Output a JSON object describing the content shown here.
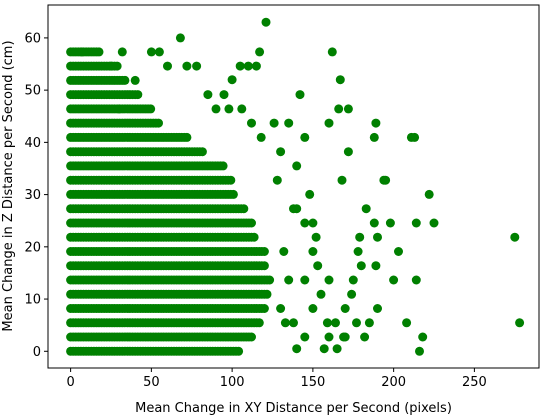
{
  "chart_data": {
    "type": "scatter",
    "title": "",
    "xlabel": "Mean Change in XY Distance per Second (pixels)",
    "ylabel": "Mean Change in Z Distance per Second (cm)",
    "xlim": [
      -14,
      290
    ],
    "ylim": [
      -3.2,
      66.3
    ],
    "xticks": [
      0,
      50,
      100,
      150,
      200,
      250
    ],
    "yticks": [
      0,
      10,
      20,
      30,
      40,
      50,
      60
    ],
    "grid": false,
    "legend": "none",
    "marker_color": "#008000",
    "z_levels": [
      0,
      2.73,
      5.46,
      8.19,
      10.92,
      13.65,
      16.38,
      19.11,
      21.84,
      24.57,
      27.3,
      30.03,
      32.76,
      35.49,
      38.22,
      40.95,
      43.68,
      46.41,
      49.14,
      51.87,
      54.6,
      57.33
    ],
    "dense_bands": [
      {
        "z": 0,
        "x_max": 105
      },
      {
        "z": 2.73,
        "x_max": 112
      },
      {
        "z": 5.46,
        "x_max": 118
      },
      {
        "z": 8.19,
        "x_max": 120
      },
      {
        "z": 10.92,
        "x_max": 122
      },
      {
        "z": 13.65,
        "x_max": 124
      },
      {
        "z": 16.38,
        "x_max": 120
      },
      {
        "z": 19.11,
        "x_max": 120
      },
      {
        "z": 21.84,
        "x_max": 115
      },
      {
        "z": 24.57,
        "x_max": 112
      },
      {
        "z": 27.3,
        "x_max": 108
      },
      {
        "z": 30.03,
        "x_max": 102
      },
      {
        "z": 32.76,
        "x_max": 100
      },
      {
        "z": 35.49,
        "x_max": 95
      },
      {
        "z": 38.22,
        "x_max": 82
      },
      {
        "z": 40.95,
        "x_max": 72
      },
      {
        "z": 43.68,
        "x_max": 55
      },
      {
        "z": 46.41,
        "x_max": 50
      },
      {
        "z": 49.14,
        "x_max": 42
      },
      {
        "z": 51.87,
        "x_max": 35
      },
      {
        "z": 54.6,
        "x_max": 30
      },
      {
        "z": 57.33,
        "x_max": 18
      }
    ],
    "outlier_points": [
      [
        278,
        5.46
      ],
      [
        275,
        21.84
      ],
      [
        225,
        24.57
      ],
      [
        222,
        30.03
      ],
      [
        218,
        2.73
      ],
      [
        216,
        0
      ],
      [
        214,
        13.65
      ],
      [
        214,
        24.57
      ],
      [
        213,
        40.95
      ],
      [
        211,
        40.95
      ],
      [
        208,
        5.46
      ],
      [
        203,
        19.11
      ],
      [
        200,
        13.65
      ],
      [
        198,
        24.57
      ],
      [
        195,
        32.76
      ],
      [
        194,
        32.76
      ],
      [
        190,
        8.19
      ],
      [
        190,
        21.84
      ],
      [
        189,
        43.68
      ],
      [
        189,
        16.38
      ],
      [
        188,
        24.57
      ],
      [
        188,
        40.95
      ],
      [
        185,
        5.46
      ],
      [
        183,
        27.3
      ],
      [
        182,
        2.73
      ],
      [
        180,
        16.38
      ],
      [
        179,
        21.84
      ],
      [
        178,
        19.11
      ],
      [
        177,
        5.46
      ],
      [
        174,
        10.92
      ],
      [
        172,
        38.22
      ],
      [
        172,
        46.41
      ],
      [
        170,
        8.19
      ],
      [
        169,
        2.73
      ],
      [
        168,
        32.76
      ],
      [
        167,
        52.0
      ],
      [
        166,
        46.41
      ],
      [
        164,
        5.46
      ],
      [
        162,
        57.33
      ],
      [
        160,
        43.68
      ],
      [
        159,
        5.46
      ],
      [
        157,
        0.5
      ],
      [
        155,
        10.92
      ],
      [
        153,
        16.38
      ],
      [
        152,
        21.84
      ],
      [
        150,
        24.57
      ],
      [
        148,
        30.03
      ],
      [
        145,
        40.95
      ],
      [
        142,
        49.14
      ],
      [
        140,
        35.49
      ],
      [
        138,
        27.3
      ],
      [
        135,
        13.65
      ],
      [
        132,
        19.11
      ],
      [
        130,
        8.19
      ],
      [
        128,
        32.76
      ],
      [
        126,
        43.68
      ],
      [
        121,
        63.0
      ],
      [
        117,
        57.33
      ],
      [
        115,
        54.6
      ],
      [
        110,
        54.6
      ],
      [
        105,
        54.6
      ],
      [
        100,
        52.0
      ],
      [
        95,
        49.14
      ],
      [
        68,
        60.0
      ],
      [
        50,
        57.33
      ],
      [
        55,
        57.33
      ],
      [
        32,
        57.33
      ],
      [
        7,
        57.33
      ],
      [
        30,
        46.41
      ],
      [
        25,
        54.6
      ],
      [
        40,
        51.87
      ],
      [
        60,
        54.6
      ],
      [
        85,
        49.14
      ],
      [
        78,
        54.6
      ],
      [
        72,
        54.6
      ],
      [
        90,
        46.41
      ],
      [
        98,
        46.41
      ],
      [
        106,
        46.41
      ],
      [
        112,
        43.68
      ],
      [
        118,
        40.95
      ],
      [
        130,
        38.22
      ],
      [
        135,
        43.68
      ],
      [
        140,
        27.3
      ],
      [
        145,
        24.57
      ],
      [
        150,
        19.11
      ],
      [
        160,
        13.65
      ],
      [
        165,
        0.5
      ],
      [
        170,
        2.73
      ],
      [
        175,
        13.65
      ],
      [
        160,
        2.73
      ],
      [
        150,
        8.19
      ],
      [
        145,
        13.65
      ],
      [
        140,
        0.5
      ],
      [
        138,
        5.46
      ],
      [
        133,
        5.46
      ],
      [
        145,
        2.73
      ]
    ]
  }
}
